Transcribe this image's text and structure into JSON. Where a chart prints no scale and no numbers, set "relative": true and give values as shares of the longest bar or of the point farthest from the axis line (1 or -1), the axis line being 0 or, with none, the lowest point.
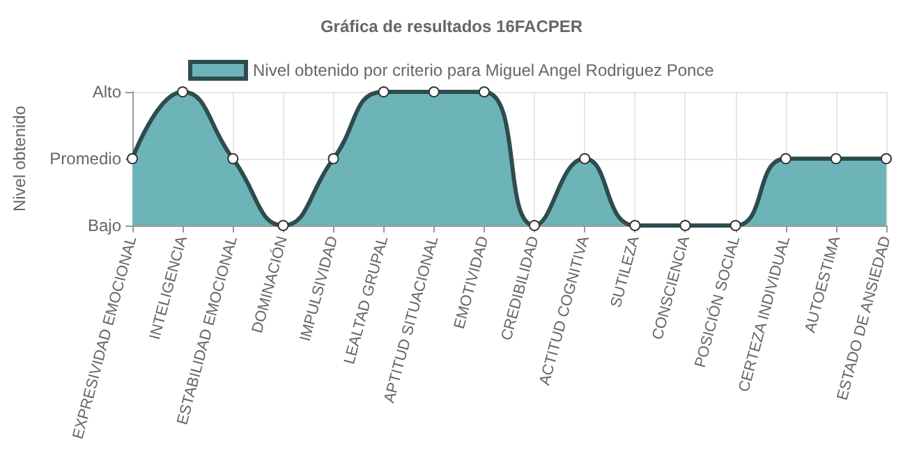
{
  "chart_data": {
    "type": "area",
    "title": "Gráfica de resultados 16FACPER",
    "ylabel": "Nivel obtenido",
    "categories": [
      "EXPRESIVIDAD EMOCIONAL",
      "INTELIGENCIA",
      "ESTABILIDAD EMOCIONAL",
      "DOMINACIÓN",
      "IMPULSIVIDAD",
      "LEALTAD GRUPAL",
      "APTITUD SITUACIONAL",
      "EMOTIVIDAD",
      "CREDIBILIDAD",
      "ACTITUD COGNITIVA",
      "SUTILEZA",
      "CONSCIENCIA",
      "POSICIÓN SOCIAL",
      "CERTEZA INDIVIDUAL",
      "AUTOESTIMA",
      "ESTADO DE ANSIEDAD"
    ],
    "relative": true,
    "series": [
      {
        "name": "Nivel obtenido por criterio para Miguel Angel Rodriguez Ponce",
        "color": "#6db4b8",
        "values": [
          0.5,
          1,
          0.5,
          0,
          0.5,
          1,
          1,
          1,
          0,
          0.5,
          0,
          0,
          0,
          0.5,
          0.5,
          0.5
        ]
      }
    ],
    "annotations": [
      "Bajo",
      "Promedio",
      "Alto"
    ],
    "grid": true,
    "legend": "top",
    "marker": "circle",
    "line_style": "solid"
  }
}
